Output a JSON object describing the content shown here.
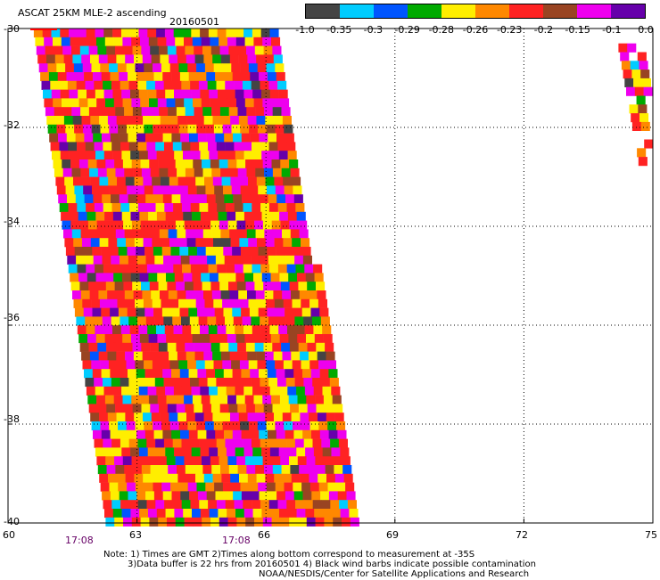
{
  "title": "ASCAT 25KM MLE-2 ascending",
  "date": "20160501",
  "colorbar": {
    "colors": [
      "#444444",
      "#00ccff",
      "#0055ff",
      "#00aa00",
      "#ffee00",
      "#ff8800",
      "#ff2222",
      "#994422",
      "#ee00ee",
      "#6600aa"
    ],
    "labels": [
      "-1.0",
      "-0.35",
      "-0.3",
      "-0.29",
      "-0.28",
      "-0.26",
      "-0.23",
      "-0.2",
      "-0.15",
      "-0.1",
      "0.0"
    ]
  },
  "axes": {
    "y_ticks": [
      "-30",
      "-32",
      "-34",
      "-36",
      "-38",
      "-40"
    ],
    "x_ticks": [
      "60",
      "63",
      "66",
      "69",
      "72",
      "75"
    ],
    "time_labels": [
      "17:08",
      "17:08"
    ]
  },
  "notes": [
    "Note: 1) Times are GMT 2)Times along bottom correspond to measurement at -35S",
    "3)Data buffer is 22 hrs from 20160501 4) Black wind barbs indicate possible contamination",
    "NOAA/NESDIS/Center for Satellite Applications and Research"
  ],
  "chart_data": {
    "type": "heatmap",
    "title": "ASCAT 25KM MLE-2 ascending",
    "xlim": [
      60,
      75
    ],
    "ylim": [
      -40,
      -30
    ],
    "x_ticks": [
      60,
      63,
      66,
      69,
      72,
      75
    ],
    "y_ticks": [
      -30,
      -32,
      -34,
      -36,
      -38,
      -40
    ],
    "grid": true,
    "swaths": [
      {
        "lon_top_left": 60.6,
        "lon_top_right": 66.3,
        "lon_bottom_left": 62.3,
        "lon_bottom_right": 68.2,
        "lat_top": -30,
        "lat_bottom": -40
      },
      {
        "lon_top_left": 74.2,
        "lon_top_right": 74.9,
        "lon_bottom_left": 74.7,
        "lon_bottom_right": 74.9,
        "lat_top": -30.3,
        "lat_bottom": -32.8
      }
    ],
    "value_bins": [
      -1.0,
      -0.35,
      -0.3,
      -0.29,
      -0.28,
      -0.26,
      -0.23,
      -0.2,
      -0.15,
      -0.1,
      0.0
    ]
  }
}
